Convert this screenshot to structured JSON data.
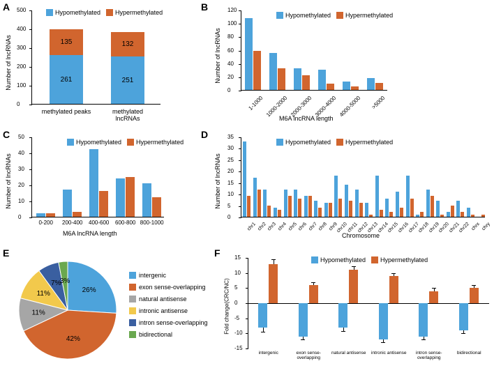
{
  "colors": {
    "hypo": "#4da3db",
    "hyper": "#d1652e",
    "gray": "#a6a6a6",
    "yellow": "#f2c94c",
    "darkblue": "#3a5fa0",
    "green": "#6aa84f",
    "axis": "#000000"
  },
  "legend": {
    "hypo": "Hypomethylated",
    "hyper": "Hypermethylated"
  },
  "panelA": {
    "label": "A",
    "ylabel": "Number of lncRNAs",
    "ymax": 500,
    "ytick_step": 100,
    "categories": [
      "methylated peaks",
      "methylated lncRNAs"
    ],
    "hypo": [
      261,
      251
    ],
    "hyper": [
      135,
      132
    ]
  },
  "panelB": {
    "label": "B",
    "ylabel": "Number of lncRNAs",
    "xlabel": "M6A lncRNA length",
    "ymax": 120,
    "ytick_step": 20,
    "categories": [
      "1-1000",
      "1000-2000",
      "2000-3000",
      "3000-4000",
      "4000-5000",
      ">5000"
    ],
    "hypo": [
      108,
      55,
      32,
      30,
      13,
      18
    ],
    "hyper": [
      58,
      32,
      22,
      9,
      5,
      10
    ]
  },
  "panelC": {
    "label": "C",
    "ylabel": "Number of lncRNAs",
    "xlabel": "M6A lncRNA length",
    "ymax": 50,
    "ytick_step": 10,
    "categories": [
      "0-200",
      "200-400",
      "400-600",
      "600-800",
      "800-1000"
    ],
    "hypo": [
      2,
      17,
      42,
      24,
      21
    ],
    "hyper": [
      2,
      3,
      16,
      25,
      12
    ]
  },
  "panelD": {
    "label": "D",
    "ylabel": "Number of lncRNAs",
    "xlabel": "Chromosome",
    "ymax": 35,
    "ytick_step": 5,
    "categories": [
      "chr1",
      "chr2",
      "chr3",
      "chr4",
      "chr5",
      "chr6",
      "chr7",
      "chr8",
      "chr9",
      "chr10",
      "chr11",
      "chr12",
      "chr13",
      "chr14",
      "chr15",
      "chr16",
      "chr17",
      "chr18",
      "chr19",
      "chr20",
      "chr21",
      "chr22",
      "chrx",
      "chry"
    ],
    "hypo": [
      33,
      17,
      12,
      4,
      12,
      12,
      9,
      7,
      6,
      18,
      14,
      12,
      6,
      18,
      8,
      11,
      18,
      1,
      12,
      7,
      2,
      7,
      4,
      0
    ],
    "hyper": [
      9,
      12,
      5,
      3,
      9,
      8,
      9,
      4,
      6,
      8,
      7,
      6,
      1,
      3,
      2,
      4,
      8,
      2,
      9,
      1,
      5,
      2,
      1,
      1
    ]
  },
  "panelE": {
    "label": "E",
    "categories": [
      "intergenic",
      "exon sense-overlapping",
      "natural antisense",
      "intronic antisense",
      "intron sense-overlapping",
      "bidirectional"
    ],
    "values": [
      26,
      42,
      11,
      11,
      7,
      3
    ],
    "colors": [
      "#4da3db",
      "#d1652e",
      "#a6a6a6",
      "#f2c94c",
      "#3a5fa0",
      "#6aa84f"
    ]
  },
  "panelF": {
    "label": "F",
    "ylabel": "Fold change(CRC/NC)",
    "ymin": -15,
    "ymax": 15,
    "ytick_step": 5,
    "categories": [
      "intergenic",
      "exon sense-overlapping",
      "natural antisense",
      "intronic antisense",
      "intron sense-overlapping",
      "bidirectional"
    ],
    "hypo": [
      -8,
      -11,
      -8,
      -12,
      -11,
      -9
    ],
    "hyper": [
      13,
      6,
      11,
      9,
      4,
      5
    ],
    "err": [
      1.5,
      1,
      1.2,
      1,
      1,
      1
    ]
  }
}
